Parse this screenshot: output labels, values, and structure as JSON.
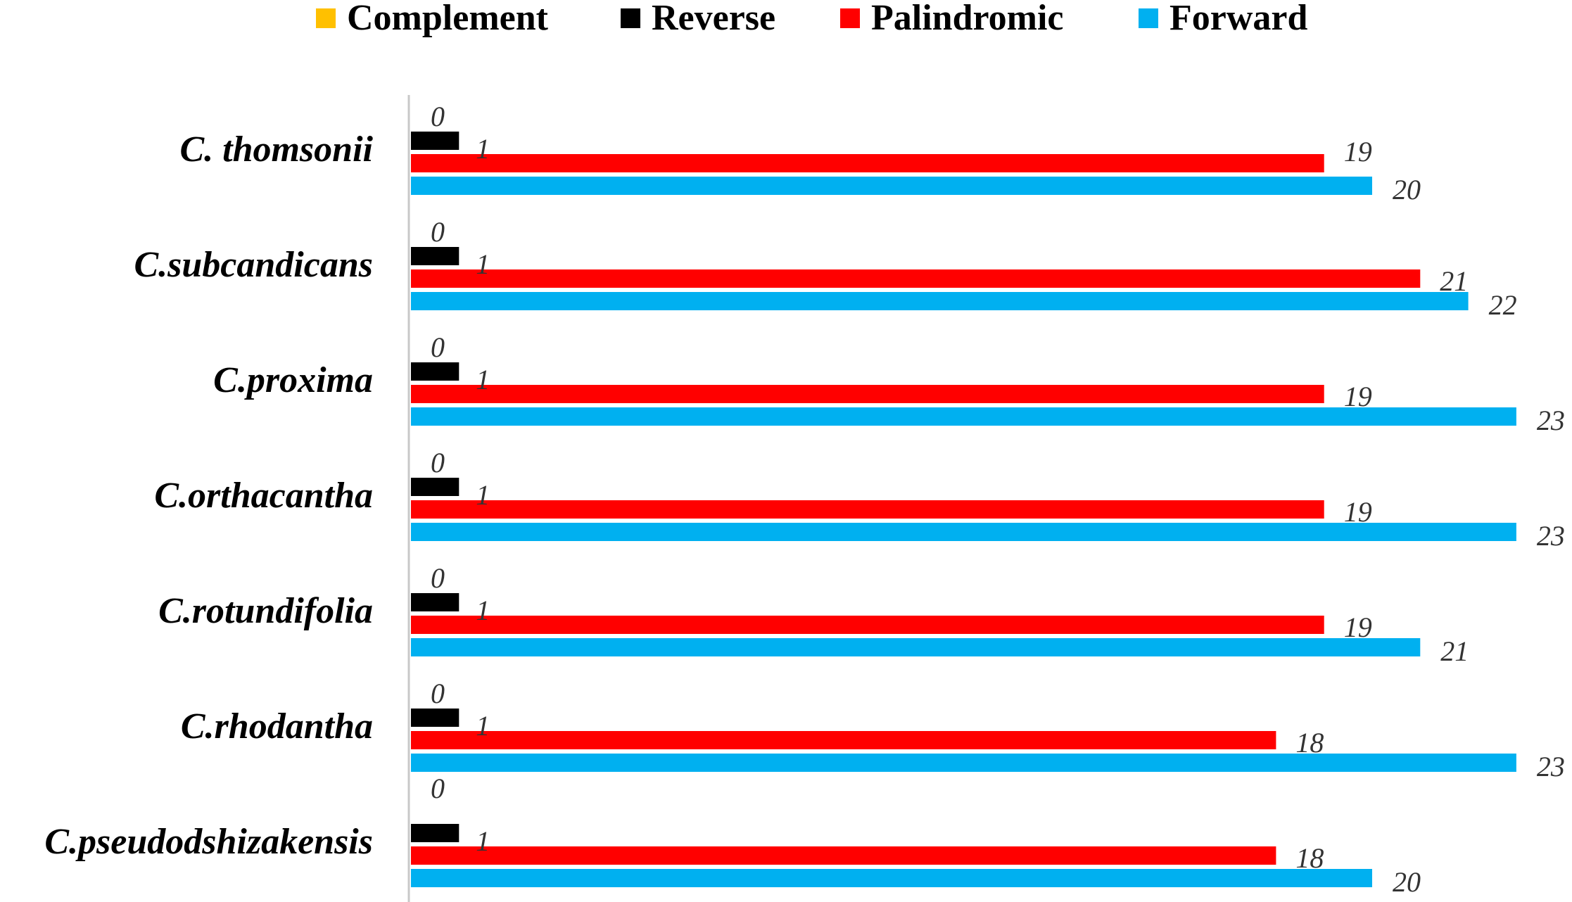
{
  "chart_data": {
    "type": "bar",
    "orientation": "horizontal",
    "categories": [
      "C. thomsonii",
      "C.subcandicans",
      "C.proxima",
      "C.orthacantha",
      "C.rotundifolia",
      "C.rhodantha",
      "C.pseudodshizakensis"
    ],
    "series": [
      {
        "name": "Complement",
        "color": "#FFC000",
        "values": [
          0,
          0,
          0,
          0,
          0,
          0,
          0
        ]
      },
      {
        "name": "Reverse",
        "color": "#000000",
        "values": [
          1,
          1,
          1,
          1,
          1,
          1,
          1
        ]
      },
      {
        "name": "Palindromic",
        "color": "#FF0000",
        "values": [
          19,
          21,
          19,
          19,
          19,
          18,
          18
        ]
      },
      {
        "name": "Forward",
        "color": "#00B0F0",
        "values": [
          20,
          22,
          23,
          23,
          21,
          23,
          20
        ]
      }
    ],
    "legend_order": [
      "Complement",
      "Reverse",
      "Palindromic",
      "Forward"
    ],
    "legend_position": "top",
    "xlim": [
      0,
      23
    ],
    "grid": false,
    "title": "",
    "xlabel": "",
    "ylabel": ""
  }
}
